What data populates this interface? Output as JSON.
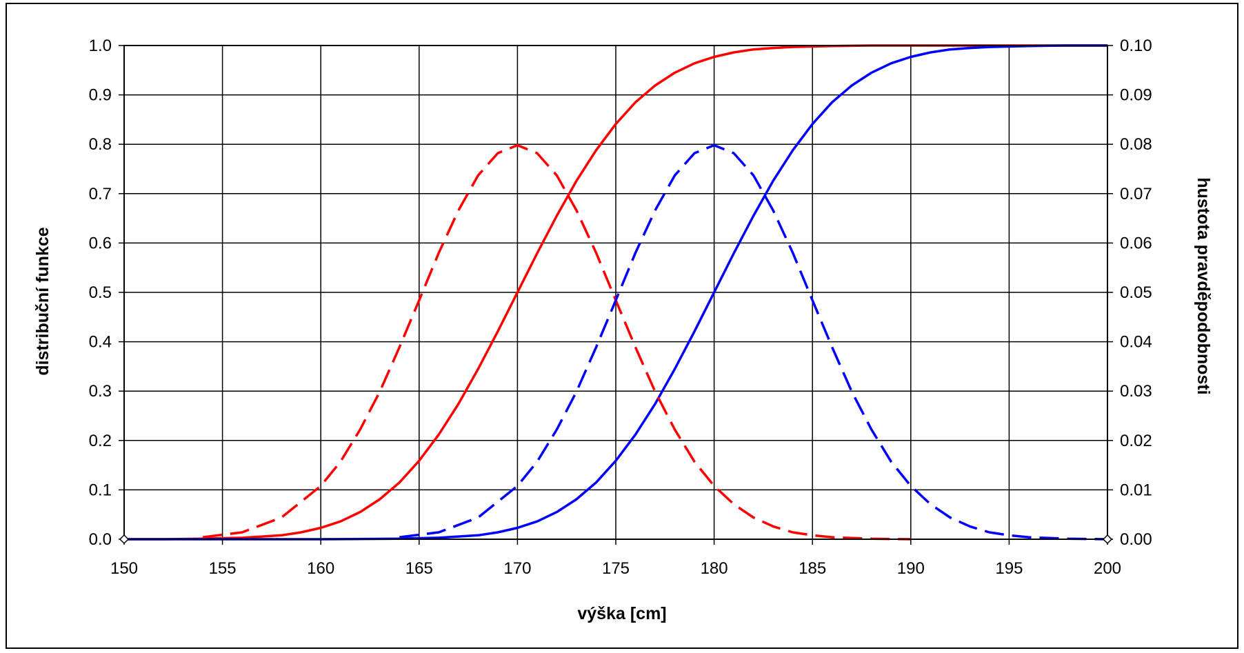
{
  "chart_data": {
    "type": "line",
    "title": "",
    "xlabel": "výška [cm]",
    "ylabel": "distribuční funkce",
    "y2label": "hustota pravděpodobnosti",
    "xlim": [
      150,
      200
    ],
    "ylim": [
      0,
      1.0
    ],
    "y2lim": [
      0,
      0.1
    ],
    "grid": true,
    "legend": "none",
    "x_ticks": [
      "150",
      "155",
      "160",
      "165",
      "170",
      "175",
      "180",
      "185",
      "190",
      "195",
      "200"
    ],
    "y_ticks": [
      "0.0",
      "0.1",
      "0.2",
      "0.3",
      "0.4",
      "0.5",
      "0.6",
      "0.7",
      "0.8",
      "0.9",
      "1.0"
    ],
    "y2_ticks": [
      "0.00",
      "0.01",
      "0.02",
      "0.03",
      "0.04",
      "0.05",
      "0.06",
      "0.07",
      "0.08",
      "0.09",
      "0.10"
    ],
    "series": [
      {
        "axis": "left",
        "color": "#ff0000",
        "style": "solid",
        "x": [
          150,
          152,
          154,
          156,
          158,
          159,
          160,
          161,
          162,
          163,
          164,
          165,
          166,
          167,
          168,
          169,
          170,
          171,
          172,
          173,
          174,
          175,
          176,
          177,
          178,
          179,
          180,
          181,
          182,
          183,
          184,
          186,
          188,
          200
        ],
        "y": [
          0.0,
          0.0,
          0.001,
          0.003,
          0.008,
          0.014,
          0.023,
          0.036,
          0.055,
          0.081,
          0.115,
          0.159,
          0.212,
          0.274,
          0.345,
          0.421,
          0.5,
          0.579,
          0.655,
          0.726,
          0.788,
          0.841,
          0.885,
          0.919,
          0.945,
          0.964,
          0.977,
          0.986,
          0.992,
          0.995,
          0.997,
          0.999,
          1.0,
          1.0
        ]
      },
      {
        "axis": "left",
        "color": "#0000ff",
        "style": "solid",
        "x": [
          150,
          160,
          164,
          166,
          168,
          169,
          170,
          171,
          172,
          173,
          174,
          175,
          176,
          177,
          178,
          179,
          180,
          181,
          182,
          183,
          184,
          185,
          186,
          187,
          188,
          189,
          190,
          191,
          192,
          193,
          194,
          196,
          198,
          200
        ],
        "y": [
          0.0,
          0.0,
          0.001,
          0.003,
          0.008,
          0.014,
          0.023,
          0.036,
          0.055,
          0.081,
          0.115,
          0.159,
          0.212,
          0.274,
          0.345,
          0.421,
          0.5,
          0.579,
          0.655,
          0.726,
          0.788,
          0.841,
          0.885,
          0.919,
          0.945,
          0.964,
          0.977,
          0.986,
          0.992,
          0.995,
          0.997,
          0.999,
          1.0,
          1.0
        ]
      },
      {
        "axis": "right",
        "color": "#ff0000",
        "style": "dashed",
        "x": [
          154,
          156,
          158,
          160,
          161,
          162,
          163,
          164,
          165,
          166,
          167,
          168,
          169,
          170,
          171,
          172,
          173,
          174,
          175,
          176,
          177,
          178,
          179,
          180,
          181,
          182,
          183,
          184,
          185,
          186,
          188,
          190
        ],
        "y": [
          0.0004,
          0.0014,
          0.0044,
          0.0108,
          0.0157,
          0.0222,
          0.0299,
          0.0389,
          0.0484,
          0.058,
          0.0666,
          0.0737,
          0.0782,
          0.0798,
          0.0782,
          0.0737,
          0.0666,
          0.058,
          0.0484,
          0.0389,
          0.0299,
          0.0222,
          0.0157,
          0.0108,
          0.0071,
          0.0044,
          0.0026,
          0.0014,
          0.0008,
          0.0004,
          0.0001,
          0.0
        ]
      },
      {
        "axis": "right",
        "color": "#0000ff",
        "style": "dashed",
        "x": [
          164,
          166,
          168,
          170,
          171,
          172,
          173,
          174,
          175,
          176,
          177,
          178,
          179,
          180,
          181,
          182,
          183,
          184,
          185,
          186,
          187,
          188,
          189,
          190,
          191,
          192,
          193,
          194,
          195,
          196,
          198,
          200
        ],
        "y": [
          0.0004,
          0.0014,
          0.0044,
          0.0108,
          0.0157,
          0.0222,
          0.0299,
          0.0389,
          0.0484,
          0.058,
          0.0666,
          0.0737,
          0.0782,
          0.0798,
          0.0782,
          0.0737,
          0.0666,
          0.058,
          0.0484,
          0.0389,
          0.0299,
          0.0222,
          0.0157,
          0.0108,
          0.0071,
          0.0044,
          0.0026,
          0.0014,
          0.0008,
          0.0004,
          0.0001,
          0.0
        ]
      }
    ]
  }
}
